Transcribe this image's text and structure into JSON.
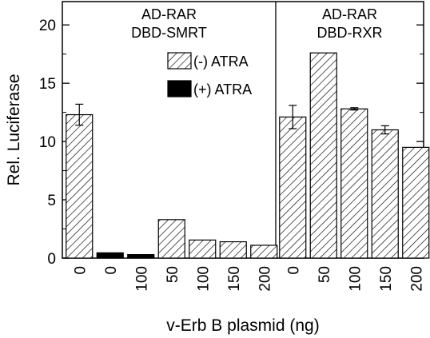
{
  "chart_data": {
    "type": "bar",
    "xlabel": "v-Erb B plasmid (ng)",
    "ylabel": "Rel. Luciferase",
    "ylim": [
      0,
      22
    ],
    "yticks": [
      0,
      5,
      10,
      15,
      20
    ],
    "grid": false,
    "legend": {
      "placement": "top-center-of-left-panel",
      "entries": [
        {
          "key": "minus",
          "label": "(-) ATRA",
          "fill": "hatch"
        },
        {
          "key": "plus",
          "label": "(+) ATRA",
          "fill": "solid"
        }
      ]
    },
    "panels": [
      {
        "title_line1": "AD-RAR",
        "title_line2": "DBD-SMRT",
        "bars": [
          {
            "category": "0",
            "value": 12.3,
            "error": 0.9,
            "treatment": "minus"
          },
          {
            "category": "0",
            "value": 0.45,
            "error": 0,
            "treatment": "plus"
          },
          {
            "category": "100",
            "value": 0.3,
            "error": 0,
            "treatment": "plus"
          },
          {
            "category": "50",
            "value": 3.3,
            "error": 0,
            "treatment": "minus"
          },
          {
            "category": "100",
            "value": 1.55,
            "error": 0,
            "treatment": "minus"
          },
          {
            "category": "150",
            "value": 1.4,
            "error": 0,
            "treatment": "minus"
          },
          {
            "category": "200",
            "value": 1.1,
            "error": 0,
            "treatment": "minus"
          }
        ]
      },
      {
        "title_line1": "AD-RAR",
        "title_line2": "DBD-RXR",
        "bars": [
          {
            "category": "0",
            "value": 12.1,
            "error": 1.0,
            "treatment": "minus"
          },
          {
            "category": "50",
            "value": 17.6,
            "error": 0,
            "treatment": "minus"
          },
          {
            "category": "100",
            "value": 12.8,
            "error": 0.1,
            "treatment": "minus"
          },
          {
            "category": "150",
            "value": 11.0,
            "error": 0.35,
            "treatment": "minus"
          },
          {
            "category": "200",
            "value": 9.5,
            "error": 0,
            "treatment": "minus"
          }
        ]
      }
    ]
  }
}
